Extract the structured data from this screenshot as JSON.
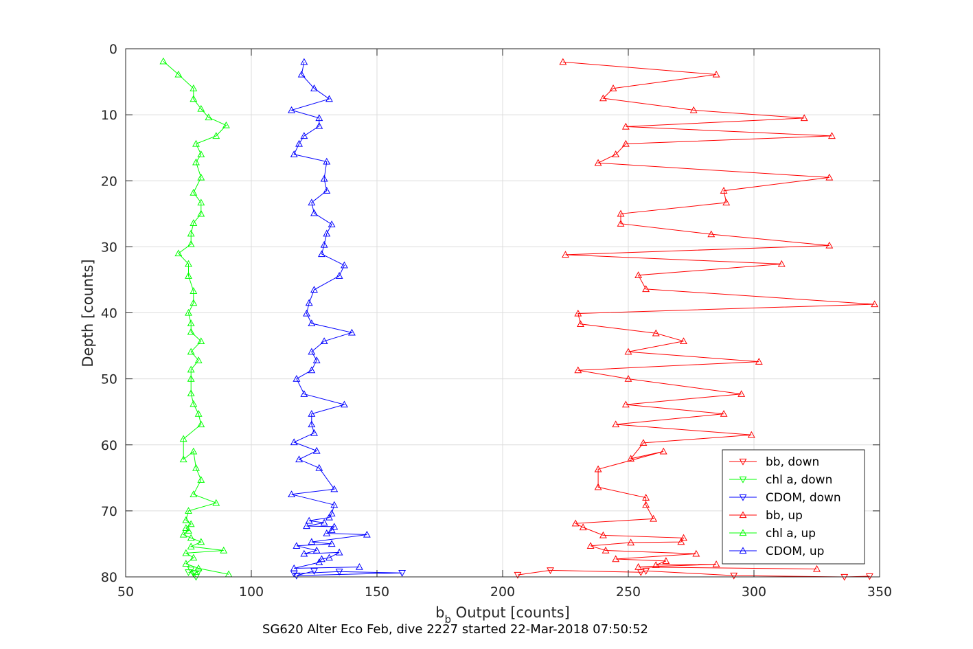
{
  "chart_data": {
    "type": "line",
    "caption": "SG620 Alter Eco Feb, dive 2227 started 22-Mar-2018 07:50:52",
    "xlabel_main": "b",
    "xlabel_sub": "b",
    "xlabel_rest": " Output [counts]",
    "ylabel": "Depth [counts]",
    "xlim": [
      50,
      350
    ],
    "ylim": [
      0,
      80
    ],
    "y_reversed": true,
    "grid": true,
    "legend_position": "bottom-right",
    "xticks": [
      50,
      100,
      150,
      200,
      250,
      300,
      350
    ],
    "yticks": [
      0,
      10,
      20,
      30,
      40,
      50,
      60,
      70,
      80
    ],
    "series": [
      {
        "name": "bb, down",
        "color": "#ff0000",
        "marker": "triangle-down",
        "points": [
          [
            206,
            79.7
          ],
          [
            219,
            79.0
          ],
          [
            255,
            79.3
          ],
          [
            257,
            79.1
          ],
          [
            292,
            79.8
          ],
          [
            336,
            80.0
          ],
          [
            346,
            79.9
          ]
        ]
      },
      {
        "name": "chl a, down",
        "color": "#00ff00",
        "marker": "triangle-down",
        "points": [
          [
            75,
            79.3
          ],
          [
            77,
            79.5
          ],
          [
            79,
            79.2
          ],
          [
            76,
            78.9
          ],
          [
            78,
            80.0
          ]
        ]
      },
      {
        "name": "CDOM, down",
        "color": "#0000ff",
        "marker": "triangle-down",
        "points": [
          [
            117,
            79.5
          ],
          [
            135,
            79.2
          ],
          [
            160,
            79.4
          ],
          [
            118,
            79.8
          ],
          [
            125,
            79.1
          ]
        ]
      },
      {
        "name": "bb, up",
        "color": "#ff0000",
        "marker": "triangle-up",
        "points": [
          [
            325,
            78.8
          ],
          [
            254,
            78.5
          ],
          [
            285,
            78.1
          ],
          [
            261,
            78.2
          ],
          [
            265,
            77.6
          ],
          [
            245,
            77.3
          ],
          [
            277,
            76.5
          ],
          [
            241,
            76.0
          ],
          [
            235,
            75.3
          ],
          [
            251,
            74.8
          ],
          [
            271,
            74.7
          ],
          [
            272,
            74.1
          ],
          [
            240,
            73.7
          ],
          [
            232,
            72.5
          ],
          [
            229,
            71.9
          ],
          [
            260,
            71.2
          ],
          [
            257,
            69.1
          ],
          [
            257,
            68.0
          ],
          [
            238,
            66.4
          ],
          [
            238,
            63.7
          ],
          [
            264,
            61.0
          ],
          [
            251,
            62.1
          ],
          [
            256,
            59.7
          ],
          [
            299,
            58.5
          ],
          [
            245,
            56.9
          ],
          [
            288,
            55.3
          ],
          [
            249,
            53.9
          ],
          [
            295,
            52.3
          ],
          [
            250,
            50.0
          ],
          [
            230,
            48.7
          ],
          [
            302,
            47.4
          ],
          [
            250,
            45.9
          ],
          [
            272,
            44.3
          ],
          [
            261,
            43.1
          ],
          [
            231,
            41.7
          ],
          [
            230,
            40.1
          ],
          [
            348,
            38.7
          ],
          [
            257,
            36.4
          ],
          [
            254,
            34.3
          ],
          [
            311,
            32.6
          ],
          [
            225,
            31.2
          ],
          [
            330,
            29.8
          ],
          [
            283,
            28.1
          ],
          [
            247,
            26.5
          ],
          [
            247,
            25.0
          ],
          [
            289,
            23.3
          ],
          [
            288,
            21.5
          ],
          [
            330,
            19.5
          ],
          [
            238,
            17.3
          ],
          [
            245,
            16.0
          ],
          [
            249,
            14.4
          ],
          [
            331,
            13.2
          ],
          [
            249,
            11.8
          ],
          [
            320,
            10.5
          ],
          [
            276,
            9.3
          ],
          [
            240,
            7.5
          ],
          [
            244,
            6.0
          ],
          [
            285,
            3.9
          ],
          [
            224,
            2.0
          ]
        ]
      },
      {
        "name": "chl a, up",
        "color": "#00ff00",
        "marker": "triangle-up",
        "points": [
          [
            91,
            79.6
          ],
          [
            79,
            78.7
          ],
          [
            74,
            78.0
          ],
          [
            77,
            77.1
          ],
          [
            74,
            76.4
          ],
          [
            89,
            76.0
          ],
          [
            76,
            75.4
          ],
          [
            80,
            74.7
          ],
          [
            76,
            74.1
          ],
          [
            73,
            73.6
          ],
          [
            75,
            73.0
          ],
          [
            74,
            72.6
          ],
          [
            76,
            72.0
          ],
          [
            74,
            71.4
          ],
          [
            75,
            70.0
          ],
          [
            86,
            68.8
          ],
          [
            77,
            67.5
          ],
          [
            80,
            65.3
          ],
          [
            78,
            63.5
          ],
          [
            77,
            61.0
          ],
          [
            73,
            62.2
          ],
          [
            73,
            59.1
          ],
          [
            80,
            56.9
          ],
          [
            79,
            55.3
          ],
          [
            77,
            53.8
          ],
          [
            76,
            52.2
          ],
          [
            76,
            50.0
          ],
          [
            76,
            48.6
          ],
          [
            79,
            47.2
          ],
          [
            76,
            45.9
          ],
          [
            80,
            44.3
          ],
          [
            76,
            42.9
          ],
          [
            76,
            41.6
          ],
          [
            75,
            40.0
          ],
          [
            77,
            38.5
          ],
          [
            77,
            36.7
          ],
          [
            75,
            34.4
          ],
          [
            75,
            32.6
          ],
          [
            71,
            31.0
          ],
          [
            76,
            29.6
          ],
          [
            76,
            28.0
          ],
          [
            77,
            26.4
          ],
          [
            80,
            25.0
          ],
          [
            80,
            23.3
          ],
          [
            77,
            21.8
          ],
          [
            80,
            19.5
          ],
          [
            78,
            17.2
          ],
          [
            80,
            16.0
          ],
          [
            78,
            14.4
          ],
          [
            86,
            13.2
          ],
          [
            90,
            11.6
          ],
          [
            83,
            10.4
          ],
          [
            80,
            9.1
          ],
          [
            77,
            7.6
          ],
          [
            77,
            6.0
          ],
          [
            71,
            3.9
          ],
          [
            65,
            1.9
          ]
        ]
      },
      {
        "name": "CDOM, up",
        "color": "#0000ff",
        "marker": "triangle-up",
        "points": [
          [
            143,
            78.5
          ],
          [
            117,
            78.7
          ],
          [
            127,
            77.8
          ],
          [
            128,
            77.3
          ],
          [
            131,
            77.1
          ],
          [
            135,
            76.3
          ],
          [
            121,
            76.5
          ],
          [
            126,
            76.0
          ],
          [
            118,
            75.3
          ],
          [
            132,
            75.0
          ],
          [
            124,
            74.7
          ],
          [
            146,
            73.6
          ],
          [
            130,
            73.4
          ],
          [
            132,
            72.9
          ],
          [
            133,
            72.4
          ],
          [
            122,
            72.3
          ],
          [
            129,
            71.8
          ],
          [
            123,
            71.5
          ],
          [
            131,
            71.0
          ],
          [
            132,
            70.4
          ],
          [
            133,
            69.1
          ],
          [
            116,
            67.5
          ],
          [
            133,
            66.7
          ],
          [
            127,
            63.5
          ],
          [
            119,
            62.2
          ],
          [
            126,
            60.9
          ],
          [
            117,
            59.6
          ],
          [
            125,
            58.2
          ],
          [
            124,
            56.9
          ],
          [
            124,
            55.3
          ],
          [
            137,
            53.9
          ],
          [
            121,
            52.3
          ],
          [
            118,
            50.0
          ],
          [
            124,
            48.7
          ],
          [
            126,
            47.2
          ],
          [
            124,
            45.9
          ],
          [
            129,
            44.3
          ],
          [
            140,
            43.0
          ],
          [
            124,
            41.6
          ],
          [
            122,
            40.1
          ],
          [
            123,
            38.5
          ],
          [
            125,
            36.5
          ],
          [
            135,
            34.4
          ],
          [
            137,
            32.8
          ],
          [
            128,
            31.1
          ],
          [
            129,
            29.7
          ],
          [
            130,
            28.0
          ],
          [
            132,
            26.6
          ],
          [
            125,
            24.9
          ],
          [
            124,
            23.3
          ],
          [
            130,
            21.5
          ],
          [
            129,
            19.7
          ],
          [
            130,
            17.1
          ],
          [
            117,
            16.0
          ],
          [
            119,
            14.4
          ],
          [
            121,
            13.2
          ],
          [
            127,
            11.7
          ],
          [
            127,
            10.5
          ],
          [
            116,
            9.3
          ],
          [
            131,
            7.6
          ],
          [
            125,
            6.0
          ],
          [
            120,
            3.9
          ],
          [
            121,
            2.0
          ]
        ]
      }
    ]
  }
}
